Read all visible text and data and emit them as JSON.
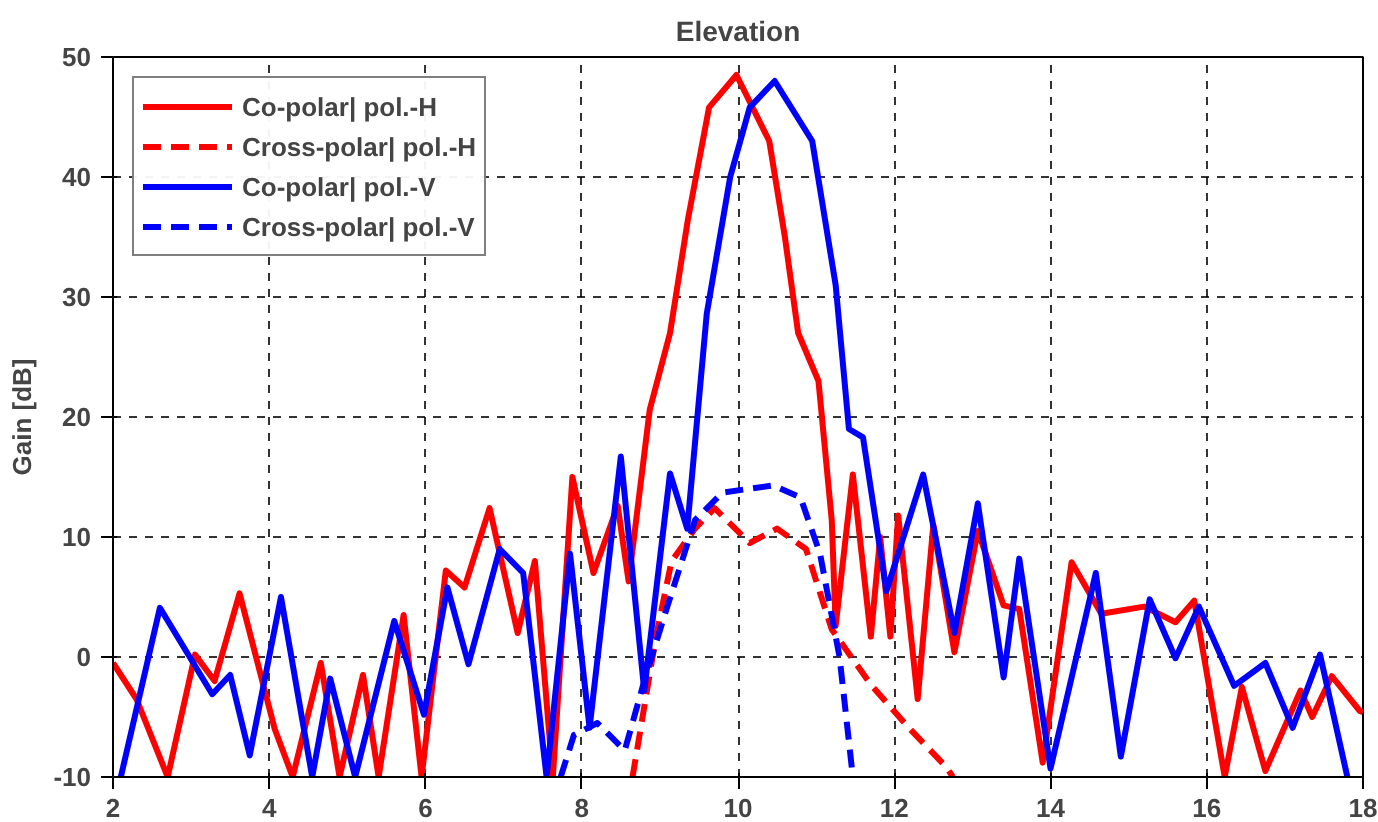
{
  "chart_data": {
    "type": "line",
    "title": "Elevation",
    "ylabel": "Gain [dB]",
    "xlim": [
      2,
      18
    ],
    "ylim": [
      -10,
      50
    ],
    "xticks": [
      2,
      4,
      6,
      8,
      10,
      12,
      14,
      16,
      18
    ],
    "yticks": [
      -10,
      0,
      10,
      20,
      30,
      40,
      50
    ],
    "grid": true,
    "legend": "top left",
    "marker": "none",
    "series": [
      {
        "name": "Co-polar| pol.-H",
        "color": "#ff0000",
        "line_style": "solid",
        "x": [
          2.0,
          2.3,
          2.7,
          3.05,
          3.3,
          3.62,
          4.07,
          4.3,
          4.66,
          4.9,
          5.2,
          5.4,
          5.72,
          5.95,
          6.26,
          6.5,
          6.82,
          7.18,
          7.4,
          7.63,
          7.88,
          8.15,
          8.46,
          8.6,
          8.87,
          9.13,
          9.36,
          9.63,
          9.98,
          10.4,
          10.6,
          10.77,
          11.03,
          11.2,
          11.25,
          11.47,
          11.7,
          11.82,
          11.95,
          12.05,
          12.3,
          12.5,
          12.77,
          13.07,
          13.4,
          13.6,
          13.9,
          14.27,
          14.65,
          15.2,
          15.6,
          15.84,
          16.23,
          16.45,
          16.75,
          17.2,
          17.35,
          17.6,
          17.96,
          18.0
        ],
        "values": [
          -0.5,
          -3.5,
          -10,
          0.2,
          -2,
          5.3,
          -6,
          -10,
          -0.5,
          -10,
          -1.5,
          -10,
          3.5,
          -10,
          7.2,
          5.8,
          12.4,
          2,
          8,
          -10,
          15,
          7,
          12.6,
          6.3,
          20.6,
          27,
          36.5,
          45.8,
          48.5,
          43,
          35,
          27,
          23,
          11.4,
          2.6,
          15.2,
          1.7,
          10,
          1.7,
          11.8,
          -3.5,
          11,
          0.4,
          10.5,
          4.3,
          4,
          -8.8,
          7.9,
          3.6,
          4.2,
          2.9,
          4.7,
          -10,
          -2.5,
          -9.5,
          -2.8,
          -5,
          -1.6,
          -4.5,
          -4.6
        ]
      },
      {
        "name": "Cross-polar| pol.-H",
        "color": "#ff0000",
        "line_style": "dashed",
        "x": [
          8.65,
          8.95,
          9.15,
          9.45,
          9.7,
          10.15,
          10.5,
          10.87,
          11.2,
          11.7,
          12.2,
          12.67,
          12.75
        ],
        "values": [
          -10,
          1.7,
          8,
          10.7,
          12.4,
          9.5,
          10.7,
          9,
          2.3,
          -2.3,
          -6,
          -9.2,
          -10
        ]
      },
      {
        "name": "Co-polar| pol.-V",
        "color": "#0000ff",
        "line_style": "solid",
        "x": [
          2.1,
          2.6,
          3.27,
          3.5,
          3.75,
          4.15,
          4.55,
          4.78,
          5.1,
          5.6,
          5.98,
          6.28,
          6.55,
          6.95,
          7.25,
          7.55,
          7.85,
          8.1,
          8.5,
          8.8,
          9.13,
          9.35,
          9.6,
          9.9,
          10.15,
          10.47,
          10.95,
          11.25,
          11.42,
          11.6,
          11.9,
          12.37,
          12.77,
          13.07,
          13.4,
          13.6,
          14.0,
          14.58,
          14.9,
          15.27,
          15.6,
          15.9,
          16.35,
          16.75,
          17.1,
          17.45,
          17.8
        ],
        "values": [
          -10,
          4.1,
          -3.1,
          -1.5,
          -8.2,
          5,
          -10,
          -1.8,
          -10,
          3,
          -4.8,
          5.8,
          -0.6,
          9,
          7,
          -10,
          8.6,
          -5.9,
          16.7,
          -2.8,
          15.3,
          10.7,
          28.6,
          40,
          45.8,
          48,
          43,
          31,
          19,
          18.3,
          5.5,
          15.2,
          2,
          12.8,
          -1.7,
          8.2,
          -9.3,
          7,
          -8.3,
          4.8,
          -0.1,
          4.2,
          -2.4,
          -0.5,
          -5.9,
          0.2,
          -10
        ]
      },
      {
        "name": "Cross-polar| pol.-V",
        "color": "#0000ff",
        "line_style": "dashed",
        "x": [
          7.73,
          7.9,
          8.2,
          8.55,
          8.8,
          9.1,
          9.45,
          9.8,
          10.45,
          10.8,
          11.05,
          11.3,
          11.47
        ],
        "values": [
          -10,
          -6.5,
          -5.5,
          -7.8,
          -2,
          4.3,
          11.4,
          13.7,
          14.3,
          13.3,
          8.6,
          0,
          -10
        ]
      }
    ]
  }
}
